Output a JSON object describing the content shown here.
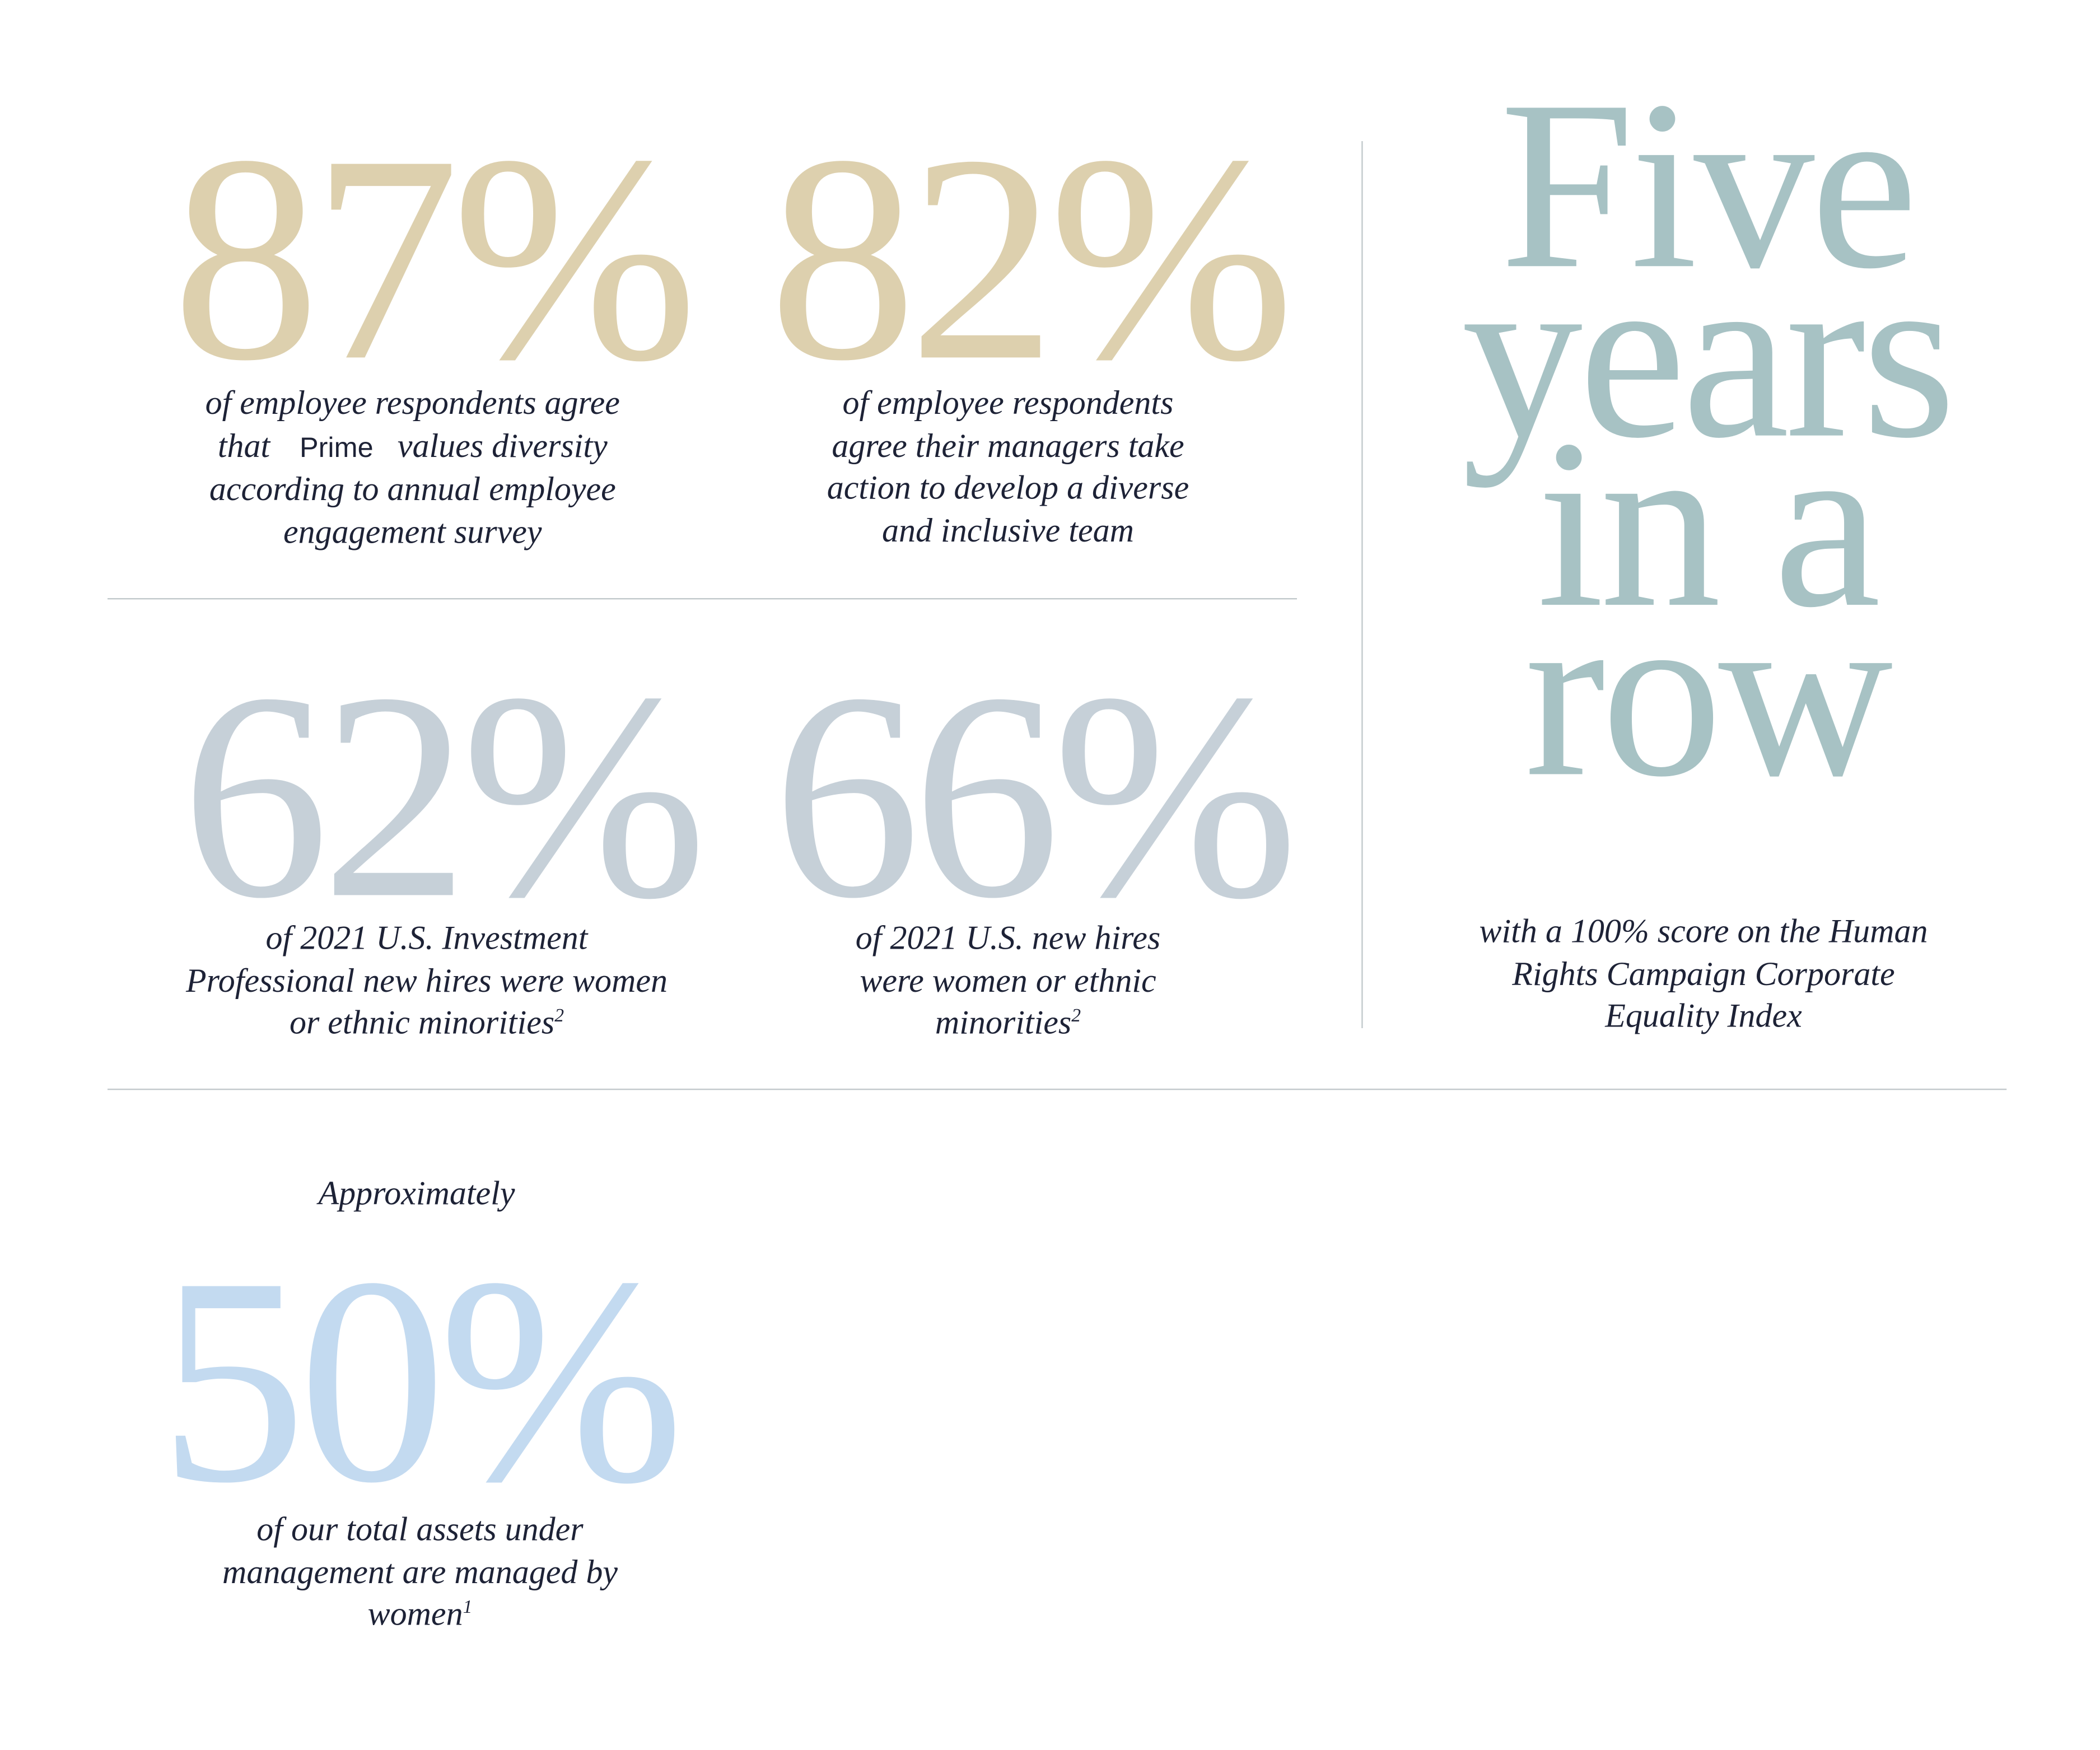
{
  "colors": {
    "gold": "#ddd0ae",
    "grey": "#c6d0d8",
    "teal": "#a7c2c4",
    "blue": "#c3daf0",
    "text": "#1d2236",
    "rule": "#c2c9cc"
  },
  "stats": {
    "s1": {
      "value": "87%",
      "line1": "of employee respondents agree",
      "line2_pre": "that",
      "brand": "Prime",
      "line2_post": "values diversity",
      "line3": "according to annual employee",
      "line4": "engagement survey"
    },
    "s2": {
      "value": "82%",
      "line1": "of employee respondents",
      "line2": "agree their managers take",
      "line3": "action to develop a diverse",
      "line4": "and inclusive team"
    },
    "s3": {
      "value": "62%",
      "line1": "of 2021 U.S. Investment",
      "line2": "Professional new hires were women",
      "line3": "or ethnic minorities",
      "footnote": "2"
    },
    "s4": {
      "value": "66%",
      "line1": "of 2021 U.S. new hires",
      "line2": "were women or ethnic",
      "line3": "minorities",
      "footnote": "2"
    },
    "s5": {
      "title_line1": "Five",
      "title_line2": "years",
      "title_line3": "in a",
      "title_line4": "row",
      "line1": "with a 100% score on the Human",
      "line2": "Rights Campaign Corporate",
      "line3": "Equality Index"
    },
    "s6": {
      "prefix": "Approximately",
      "value": "50%",
      "line1": "of our total assets under",
      "line2": "management are managed by",
      "line3": "women",
      "footnote": "1"
    }
  }
}
